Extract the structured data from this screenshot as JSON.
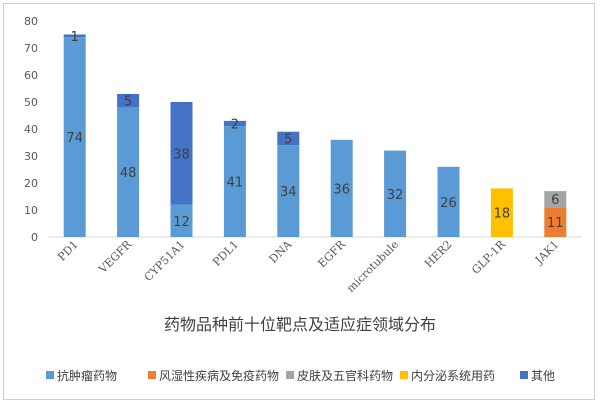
{
  "chart_data": {
    "type": "bar",
    "stacked": true,
    "title": "药物品种前十位靶点及适应症领域分布",
    "xlabel": "",
    "ylabel": "",
    "ylim": [
      0,
      80
    ],
    "yticks": [
      0,
      10,
      20,
      30,
      40,
      50,
      60,
      70,
      80
    ],
    "grid": false,
    "legend_position": "bottom",
    "categories": [
      "PD1",
      "VEGFR",
      "CYP51A1",
      "PDL1",
      "DNA",
      "EGFR",
      "microtubule",
      "HER2",
      "GLP-1R",
      "JAK1"
    ],
    "series": [
      {
        "name": "抗肿瘤药物",
        "color": "#5B9BD5",
        "values": [
          74,
          48,
          12,
          41,
          34,
          36,
          32,
          26,
          0,
          0
        ]
      },
      {
        "name": "风湿性疾病及免疫药物",
        "color": "#ED7D31",
        "values": [
          0,
          0,
          0,
          0,
          0,
          0,
          0,
          0,
          0,
          11
        ]
      },
      {
        "name": "皮肤及五官科药物",
        "color": "#A5A5A5",
        "values": [
          0,
          0,
          0,
          0,
          0,
          0,
          0,
          0,
          0,
          6
        ]
      },
      {
        "name": "内分泌系统用药",
        "color": "#FFC000",
        "values": [
          0,
          0,
          0,
          0,
          0,
          0,
          0,
          0,
          18,
          0
        ]
      },
      {
        "name": "其他",
        "color": "#4472C4",
        "values": [
          1,
          5,
          38,
          2,
          5,
          0,
          0,
          0,
          0,
          0
        ]
      }
    ]
  }
}
